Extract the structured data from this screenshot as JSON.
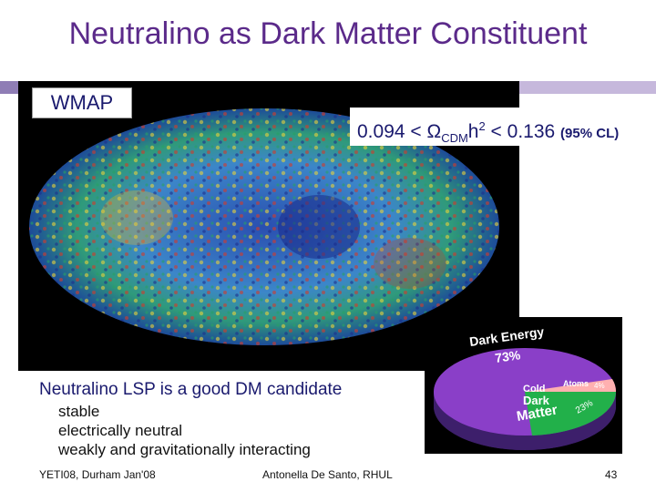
{
  "slide": {
    "title": "Neutralino as Dark Matter Constituent",
    "wmap_label": "WMAP",
    "omega": {
      "prefix": "0.094 < ",
      "symbol": "Ω",
      "subscript": "CDM",
      "h": "h",
      "exponent": "2",
      "suffix": " < 0.136",
      "cl": "(95% CL)"
    },
    "candidate": "Neutralino LSP is a good DM candidate",
    "properties": [
      "stable",
      "electrically neutral",
      "weakly and gravitationally interacting"
    ],
    "pie": {
      "dark_energy_label": "Dark Energy",
      "dark_energy_pct": "73%",
      "atoms_label": "Atoms",
      "atoms_pct": "4%",
      "cdm_label_1": "Cold",
      "cdm_label_2": "Dark",
      "cdm_label_3": "Matter",
      "cdm_pct": "23%"
    },
    "footer": {
      "left": "YETI08, Durham Jan'08",
      "center": "Antonella De Santo, RHUL",
      "page": "43"
    }
  }
}
